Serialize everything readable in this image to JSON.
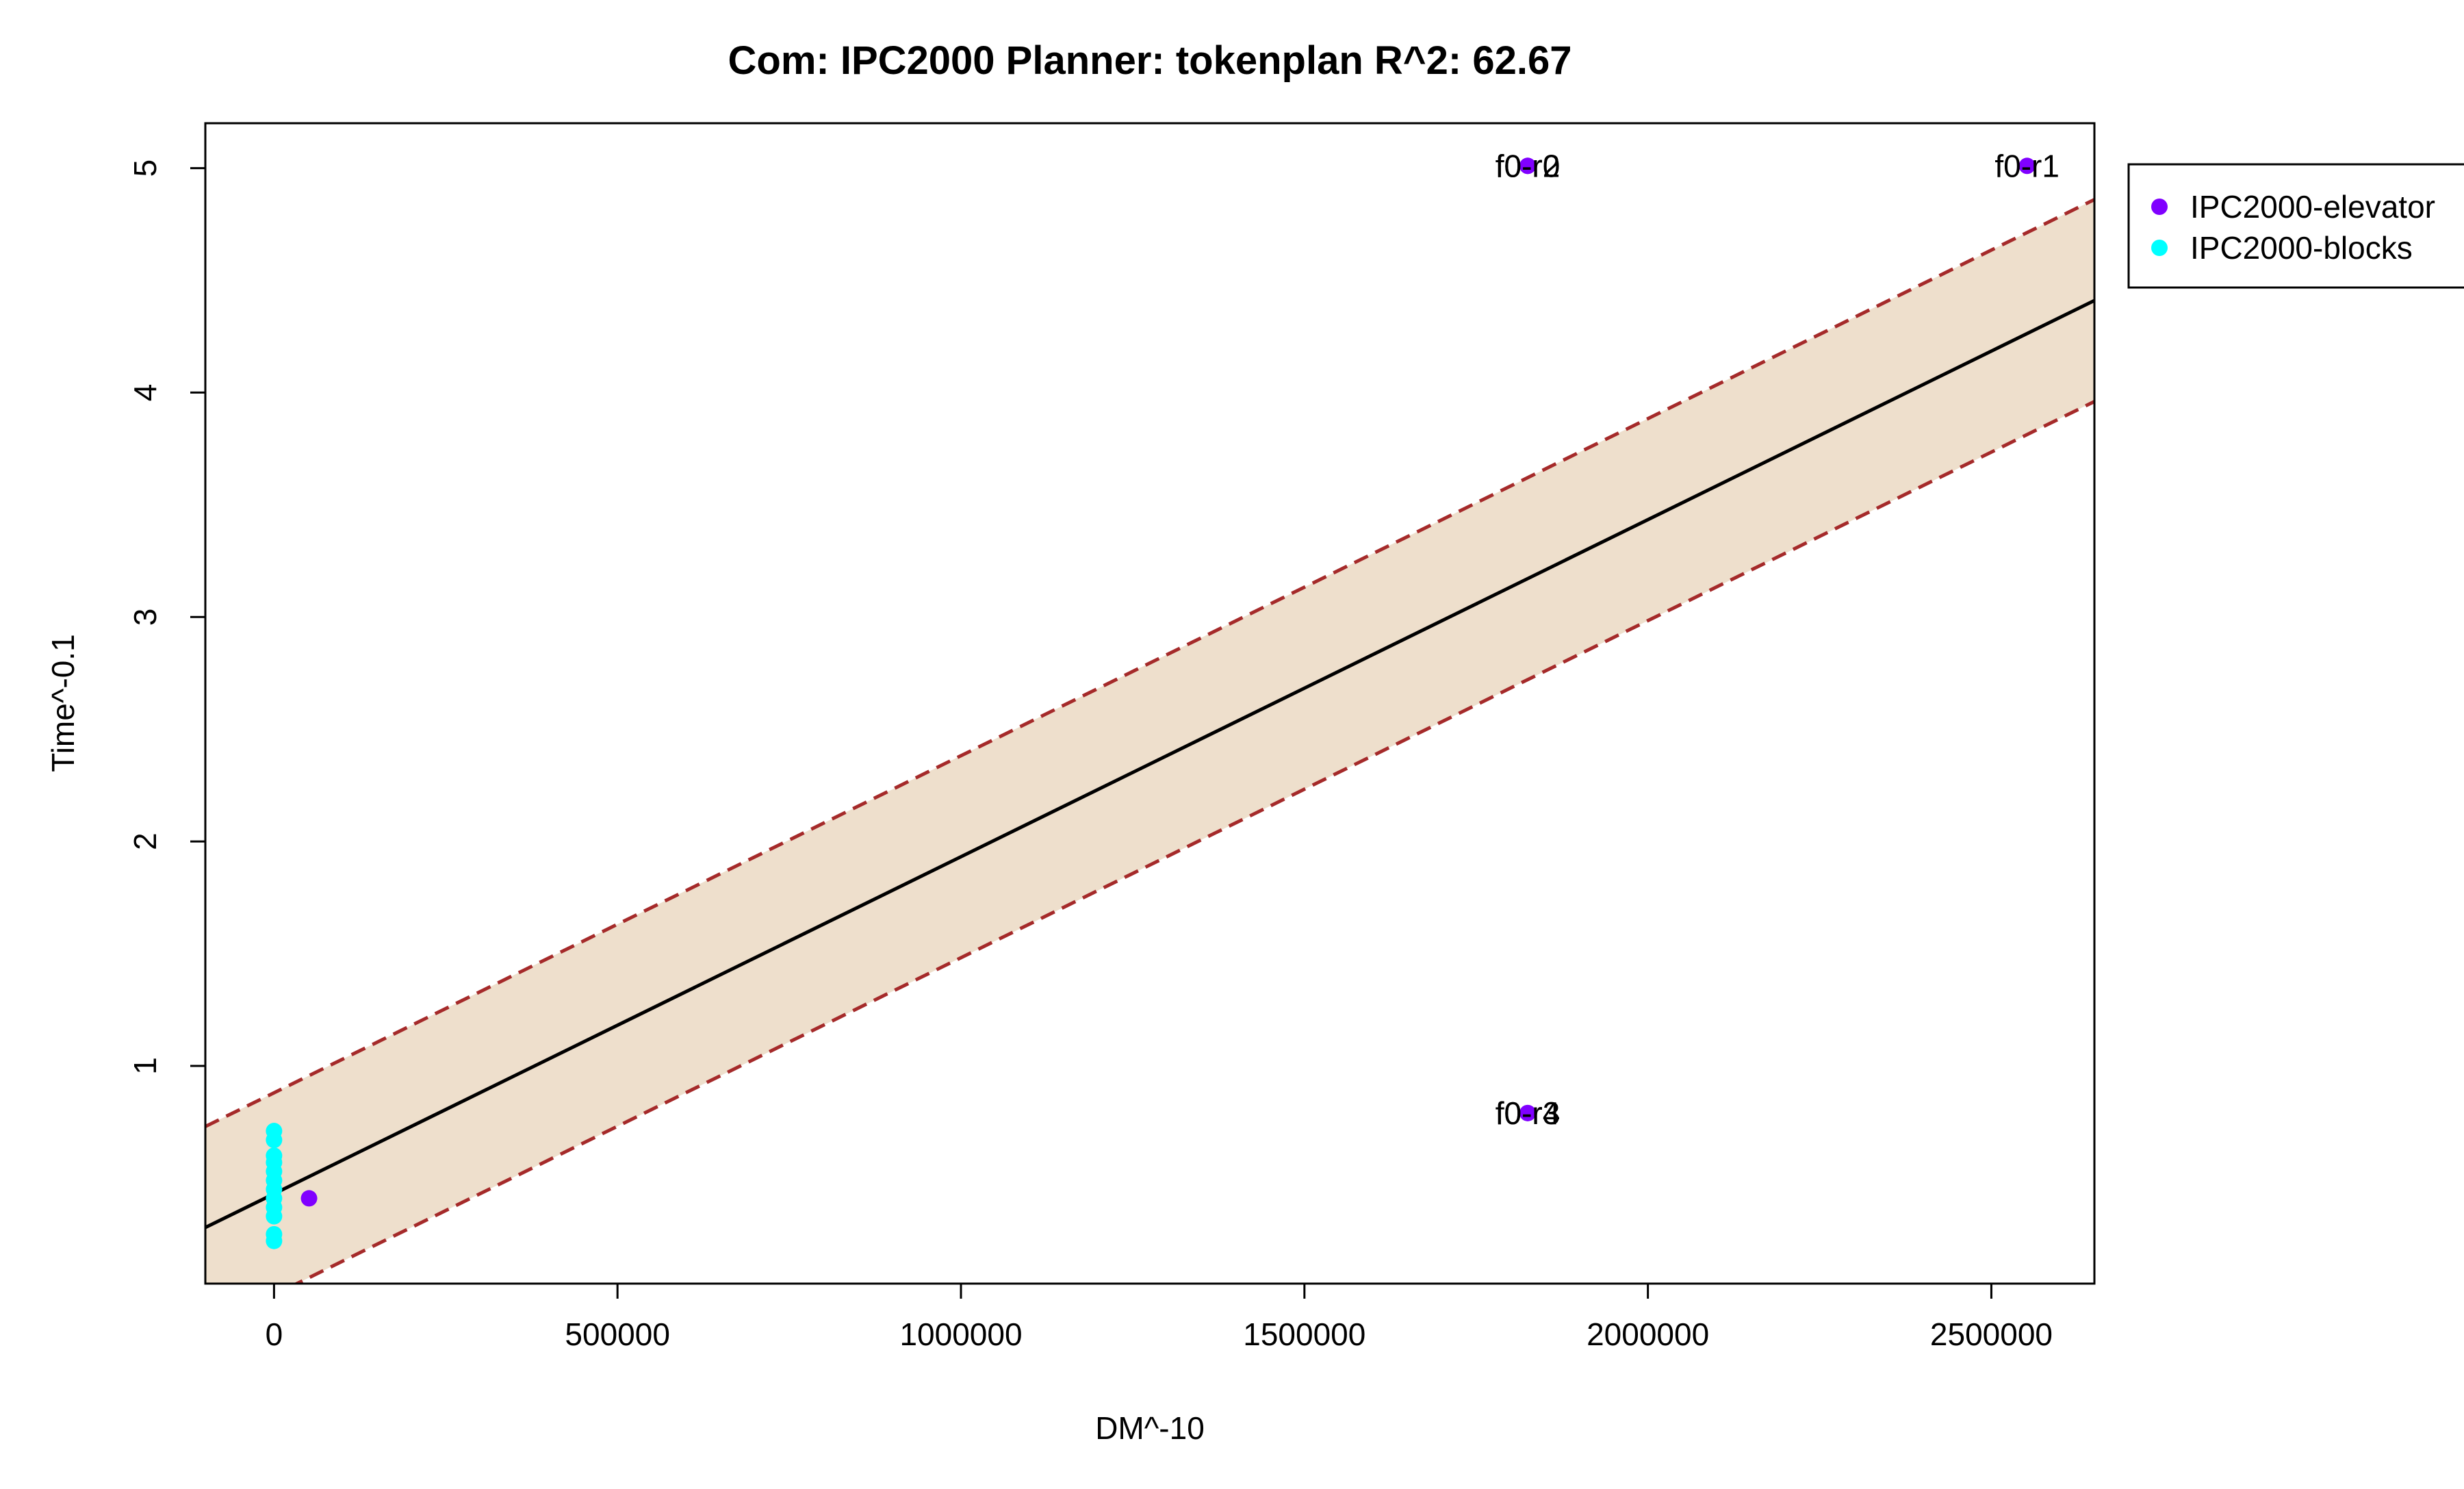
{
  "chart_data": {
    "type": "scatter",
    "title": "Com: IPC2000 Planner: tokenplan R^2: 62.67",
    "xlabel": "DM^-10",
    "ylabel": "Time^-0.1",
    "xlim": [
      -100000,
      2650000
    ],
    "ylim": [
      0.03,
      5.2
    ],
    "x_ticks": [
      0,
      500000,
      1000000,
      1500000,
      2000000,
      2500000
    ],
    "x_tick_labels": [
      "0",
      "500000",
      "1000000",
      "1500000",
      "2000000",
      "2500000"
    ],
    "y_ticks": [
      1,
      2,
      3,
      4,
      5
    ],
    "y_tick_labels": [
      "1",
      "2",
      "3",
      "4",
      "5"
    ],
    "grid": false,
    "legend_position": "top-right, outside plot",
    "regression": {
      "fit_line": [
        [
          -100000,
          0.28
        ],
        [
          2650000,
          4.41
        ]
      ],
      "upper_band": [
        [
          -100000,
          0.73
        ],
        [
          2650000,
          4.86
        ]
      ],
      "lower_band": [
        [
          -100000,
          -0.17
        ],
        [
          2650000,
          3.96
        ]
      ],
      "fit_color": "#000000",
      "band_line_color": "#a52a2a",
      "band_fill_color": "#eedfcc"
    },
    "series": [
      {
        "name": "IPC2000-elevator",
        "color": "#8000ff",
        "points": [
          {
            "x": 51000,
            "y": 0.41
          },
          {
            "x": 1825000,
            "y": 5.01
          },
          {
            "x": 1825000,
            "y": 5.01
          },
          {
            "x": 2552000,
            "y": 5.01
          },
          {
            "x": 1825000,
            "y": 0.79
          },
          {
            "x": 1825000,
            "y": 0.79
          }
        ]
      },
      {
        "name": "IPC2000-blocks",
        "color": "#00ffff",
        "points": [
          {
            "x": 0,
            "y": 0.22
          },
          {
            "x": 0,
            "y": 0.25
          },
          {
            "x": 0,
            "y": 0.33
          },
          {
            "x": 0,
            "y": 0.37
          },
          {
            "x": 0,
            "y": 0.41
          },
          {
            "x": 0,
            "y": 0.45
          },
          {
            "x": 0,
            "y": 0.49
          },
          {
            "x": 0,
            "y": 0.53
          },
          {
            "x": 0,
            "y": 0.57
          },
          {
            "x": 0,
            "y": 0.6
          },
          {
            "x": 0,
            "y": 0.67
          },
          {
            "x": 0,
            "y": 0.71
          }
        ]
      }
    ],
    "annotations": [
      {
        "text": "f0-r2",
        "x": 1825000,
        "y": 5.01
      },
      {
        "text": "f0-r0",
        "x": 1825000,
        "y": 5.01
      },
      {
        "text": "f0-r1",
        "x": 2552000,
        "y": 5.01
      },
      {
        "text": "f0-r3",
        "x": 1825000,
        "y": 0.79
      },
      {
        "text": "f0-r4",
        "x": 1825000,
        "y": 0.79
      }
    ]
  }
}
